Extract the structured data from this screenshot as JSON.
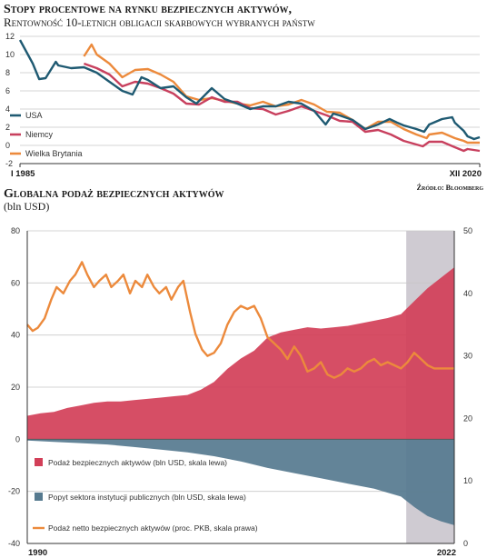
{
  "chart1": {
    "title": "Stopy procentowe na rynku bezpiecznych aktywów,",
    "subtitle": "Rentowność 10-letnich obligacji skarbowych wybranych państw",
    "start_label": "I 1985",
    "end_label": "XII 2020",
    "source": "Źródło: Bloomberg"
  },
  "chart2": {
    "title": "Globalna podaż bezpiecznych aktywów",
    "subtitle": "(bln USD)",
    "start_label": "1990",
    "end_label": "2022"
  },
  "colors": {
    "usa": "#1f5a72",
    "germany": "#c8405e",
    "uk": "#ec8a3c",
    "supply": "#d23f58",
    "demand": "#567a8f",
    "net": "#ec8a3c",
    "forecast": "#cfcbd2",
    "grid": "#c8c8c8"
  },
  "chart_data": [
    {
      "type": "line",
      "x_range": [
        1985,
        2020.95
      ],
      "ylim": [
        -2,
        12
      ],
      "yticks": [
        -2,
        0,
        2,
        4,
        6,
        8,
        10,
        12
      ],
      "grid": true,
      "legend_position": "bottom-left",
      "series": [
        {
          "name": "USA",
          "color": "#1f5a72",
          "x": [
            1985,
            1986,
            1986.5,
            1987,
            1987.8,
            1988,
            1989,
            1990,
            1991,
            1992,
            1993,
            1993.8,
            1994.5,
            1995,
            1996,
            1997,
            1998,
            1998.8,
            1999.5,
            2000,
            2001,
            2002,
            2003,
            2004,
            2005,
            2006,
            2007,
            2008,
            2008.9,
            2009.5,
            2010,
            2011,
            2012,
            2013,
            2013.9,
            2014.5,
            2015,
            2016,
            2016.6,
            2017,
            2018,
            2018.8,
            2019,
            2019.7,
            2020,
            2020.5,
            2020.95
          ],
          "y": [
            11.6,
            9.0,
            7.3,
            7.4,
            9.2,
            8.8,
            8.5,
            8.6,
            8.0,
            7.0,
            6.0,
            5.6,
            7.5,
            7.2,
            6.3,
            6.5,
            5.3,
            4.6,
            5.6,
            6.3,
            5.1,
            4.6,
            4.0,
            4.3,
            4.3,
            4.8,
            4.6,
            3.8,
            2.3,
            3.5,
            3.3,
            2.8,
            1.8,
            2.3,
            2.9,
            2.5,
            2.2,
            1.8,
            1.5,
            2.3,
            2.9,
            3.1,
            2.5,
            1.6,
            1.0,
            0.7,
            0.9
          ]
        },
        {
          "name": "Niemcy",
          "color": "#c8405e",
          "x": [
            1990,
            1991,
            1992,
            1993,
            1994,
            1995,
            1996,
            1997,
            1998,
            1999,
            2000,
            2001,
            2002,
            2003,
            2004,
            2005,
            2006,
            2007,
            2008,
            2009,
            2010,
            2011,
            2012,
            2013,
            2014,
            2015,
            2016,
            2016.5,
            2017,
            2018,
            2019,
            2019.7,
            2020,
            2020.95
          ],
          "y": [
            9.0,
            8.5,
            7.8,
            6.5,
            7.0,
            6.8,
            6.3,
            5.7,
            4.6,
            4.5,
            5.3,
            4.8,
            4.8,
            4.1,
            4.0,
            3.4,
            3.8,
            4.3,
            3.8,
            3.3,
            2.7,
            2.6,
            1.5,
            1.7,
            1.2,
            0.5,
            0.1,
            -0.1,
            0.4,
            0.4,
            -0.2,
            -0.6,
            -0.4,
            -0.6
          ]
        },
        {
          "name": "Wielka Brytania",
          "color": "#ec8a3c",
          "x": [
            1990,
            1990.6,
            1991,
            1992,
            1993,
            1994,
            1995,
            1996,
            1997,
            1998,
            1999,
            2000,
            2001,
            2002,
            2003,
            2004,
            2005,
            2006,
            2007,
            2008,
            2009,
            2010,
            2011,
            2012,
            2013,
            2014,
            2015,
            2016,
            2016.8,
            2017,
            2018,
            2019,
            2019.7,
            2020,
            2020.95
          ],
          "y": [
            9.8,
            11.1,
            10.0,
            9.0,
            7.5,
            8.3,
            8.4,
            7.8,
            7.0,
            5.4,
            5.0,
            5.2,
            4.9,
            4.6,
            4.4,
            4.8,
            4.3,
            4.5,
            5.0,
            4.5,
            3.7,
            3.6,
            2.8,
            1.8,
            2.6,
            2.6,
            1.8,
            1.2,
            0.8,
            1.2,
            1.4,
            0.8,
            0.5,
            0.3,
            0.3
          ]
        }
      ]
    },
    {
      "type": "area",
      "x_range": [
        1990,
        2022
      ],
      "ylim_left": [
        -40,
        80
      ],
      "yticks_left": [
        -40,
        -20,
        0,
        20,
        40,
        60,
        80
      ],
      "ylim_right": [
        0,
        50
      ],
      "yticks_right": [
        0,
        10,
        20,
        30,
        40,
        50
      ],
      "forecast_from": 2018.4,
      "grid": true,
      "legend_position": "bottom-left",
      "series": [
        {
          "name": "Podaż bezpiecznych aktywów (bln USD, skala lewa)",
          "type": "area",
          "axis": "left",
          "color": "#d23f58",
          "x": [
            1990,
            1991,
            1992,
            1993,
            1994,
            1995,
            1996,
            1997,
            1998,
            1999,
            2000,
            2001,
            2002,
            2003,
            2004,
            2005,
            2006,
            2007,
            2008,
            2009,
            2010,
            2011,
            2012,
            2013,
            2014,
            2015,
            2016,
            2017,
            2018,
            2019,
            2020,
            2021,
            2022
          ],
          "y": [
            9,
            10,
            10.5,
            12,
            13,
            14,
            14.5,
            14.5,
            15,
            15.5,
            16,
            16.5,
            17,
            19,
            22,
            27,
            31,
            34,
            39,
            41,
            42,
            43,
            42.5,
            43,
            43.5,
            44.5,
            45.5,
            46.5,
            48,
            53,
            58,
            62,
            66
          ]
        },
        {
          "name": "Popyt sektora instytucji publicznych (bln USD, skala lewa)",
          "type": "area",
          "axis": "left",
          "color": "#567a8f",
          "x": [
            1990,
            1992,
            1994,
            1996,
            1998,
            2000,
            2002,
            2004,
            2006,
            2008,
            2010,
            2012,
            2014,
            2016,
            2017,
            2018,
            2019,
            2020,
            2021,
            2022
          ],
          "y": [
            -0.5,
            -1,
            -1.5,
            -2,
            -3,
            -4,
            -5,
            -6.5,
            -8.5,
            -11,
            -13,
            -15,
            -17,
            -19,
            -20.5,
            -22,
            -26,
            -29.5,
            -31.5,
            -33
          ]
        },
        {
          "name": "Podaż netto bezpiecznych aktywów (proc. PKB, skala prawa)",
          "type": "line",
          "axis": "right",
          "color": "#ec8a3c",
          "x": [
            1990,
            1990.4,
            1990.8,
            1991.3,
            1991.8,
            1992.2,
            1992.7,
            1993.2,
            1993.6,
            1994.1,
            1994.5,
            1995,
            1995.4,
            1995.9,
            1996.3,
            1996.8,
            1997.2,
            1997.7,
            1998.1,
            1998.6,
            1999,
            1999.5,
            1999.9,
            2000.4,
            2000.8,
            2001.3,
            2001.7,
            2002.2,
            2002.6,
            2003.1,
            2003.5,
            2004,
            2004.5,
            2005,
            2005.5,
            2006,
            2006.5,
            2007,
            2007.5,
            2008,
            2008.5,
            2009,
            2009.5,
            2010,
            2010.5,
            2011,
            2011.5,
            2012,
            2012.5,
            2013,
            2013.5,
            2014,
            2014.5,
            2015,
            2015.5,
            2016,
            2016.5,
            2017,
            2017.5,
            2018,
            2018.5,
            2019,
            2019.5,
            2020,
            2020.5,
            2021,
            2021.5,
            2022
          ],
          "y": [
            35,
            34,
            34.5,
            36,
            39,
            41,
            40,
            42,
            43,
            45,
            43,
            41,
            42,
            43,
            41,
            42,
            43,
            40,
            42,
            41,
            43,
            41,
            40,
            41,
            39,
            41,
            42,
            37,
            33.5,
            31,
            30,
            30.5,
            32,
            35,
            37,
            38,
            37.5,
            38,
            36,
            33,
            32,
            31,
            29.5,
            31.5,
            30,
            27.5,
            28,
            29,
            27,
            26.5,
            27,
            28,
            27.5,
            28,
            29,
            29.5,
            28.5,
            29,
            28.5,
            28,
            29,
            30.5,
            29.5,
            28.5,
            28,
            28,
            28,
            28
          ]
        }
      ]
    }
  ]
}
